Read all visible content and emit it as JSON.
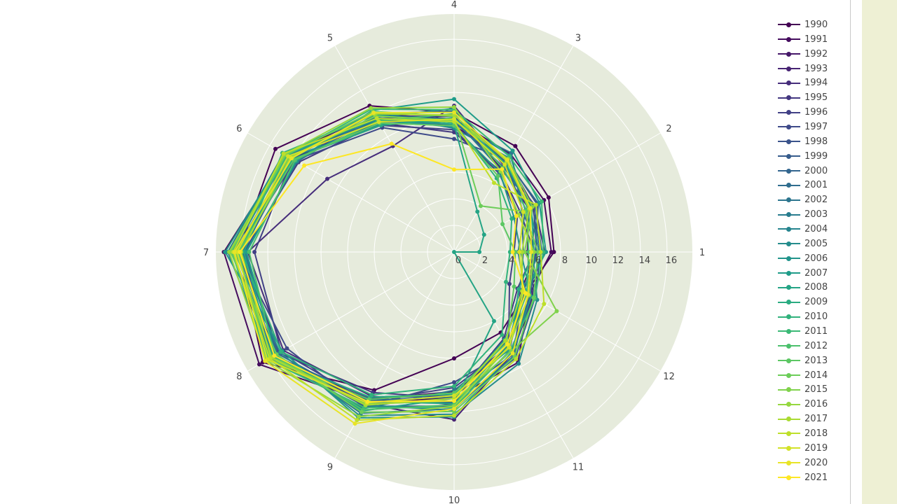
{
  "chart_data": {
    "type": "polar-line",
    "title": "",
    "angular_categories": [
      "1",
      "2",
      "3",
      "4",
      "5",
      "6",
      "7",
      "8",
      "9",
      "10",
      "11",
      "12"
    ],
    "radial_ticks": [
      "0",
      "2",
      "4",
      "6",
      "8",
      "10",
      "12",
      "14",
      "16"
    ],
    "radial_range": [
      0,
      17.9
    ],
    "colorscale": "Viridis",
    "legend_position": "right",
    "grid": true,
    "series": [
      {
        "name": "1990",
        "values": [
          7.5,
          8.2,
          9.2,
          10.5,
          12.7,
          15.5,
          16.2,
          16.6,
          12.0,
          8.0,
          7.0,
          6.2
        ]
      },
      {
        "name": "1991",
        "values": [
          7.3,
          7.8,
          8.5,
          10.0,
          12.0,
          14.6,
          17.3,
          16.9,
          13.0,
          11.0,
          9.6,
          6.5
        ]
      },
      {
        "name": "1992",
        "values": [
          6.2,
          6.9,
          8.0,
          9.5,
          11.5,
          14.0,
          16.0,
          15.8,
          12.8,
          10.5,
          8.4,
          5.8
        ]
      },
      {
        "name": "1993",
        "values": [
          5.5,
          6.5,
          7.2,
          10.2,
          11.8,
          14.2,
          16.2,
          15.5,
          13.2,
          12.6,
          8.8,
          6.8
        ]
      },
      {
        "name": "1994",
        "values": [
          6.8,
          7.0,
          7.5,
          11.0,
          9.2,
          11.0,
          15.5,
          14.8,
          12.5,
          11.5,
          8.0,
          6.3
        ]
      },
      {
        "name": "1995",
        "values": [
          6.0,
          5.8,
          7.0,
          9.0,
          11.2,
          13.5,
          15.8,
          15.2,
          12.2,
          11.0,
          7.5,
          5.5
        ]
      },
      {
        "name": "1996",
        "values": [
          4.5,
          5.5,
          6.8,
          9.2,
          11.0,
          14.0,
          15.0,
          15.0,
          13.0,
          10.2,
          8.2,
          4.8
        ]
      },
      {
        "name": "1997",
        "values": [
          5.8,
          7.2,
          8.0,
          8.5,
          10.8,
          13.8,
          16.3,
          14.5,
          13.5,
          9.8,
          8.5,
          6.9
        ]
      },
      {
        "name": "1998",
        "values": [
          6.3,
          6.0,
          7.8,
          10.3,
          11.6,
          14.3,
          16.0,
          15.6,
          12.7,
          10.8,
          8.9,
          6.0
        ]
      },
      {
        "name": "1999",
        "values": [
          6.5,
          6.8,
          7.4,
          9.8,
          11.3,
          13.9,
          16.4,
          15.7,
          13.4,
          11.6,
          9.2,
          7.0
        ]
      },
      {
        "name": "2000",
        "values": [
          6.1,
          7.3,
          7.9,
          10.6,
          12.0,
          14.1,
          15.9,
          15.3,
          13.1,
          11.3,
          8.6,
          6.6
        ]
      },
      {
        "name": "2001",
        "values": [
          5.2,
          5.9,
          8.6,
          9.6,
          11.4,
          14.5,
          16.6,
          15.9,
          12.9,
          10.9,
          7.8,
          5.7
        ]
      },
      {
        "name": "2002",
        "values": [
          6.6,
          7.0,
          7.1,
          10.0,
          11.9,
          13.6,
          15.7,
          15.4,
          14.0,
          11.8,
          9.0,
          6.4
        ]
      },
      {
        "name": "2003",
        "values": [
          4.8,
          6.2,
          8.2,
          9.3,
          12.1,
          14.8,
          17.0,
          16.0,
          13.6,
          10.4,
          8.3,
          6.2
        ]
      },
      {
        "name": "2004",
        "values": [
          6.4,
          6.6,
          7.6,
          10.8,
          11.7,
          14.4,
          16.1,
          15.8,
          13.3,
          11.9,
          8.1,
          5.9
        ]
      },
      {
        "name": "2005",
        "values": [
          5.9,
          6.4,
          8.4,
          9.9,
          11.1,
          14.2,
          16.5,
          15.1,
          14.2,
          12.2,
          9.7,
          7.2
        ]
      },
      {
        "name": "2006",
        "values": [
          5.0,
          5.2,
          6.9,
          9.4,
          11.5,
          14.7,
          17.2,
          14.9,
          14.4,
          12.4,
          8.7,
          6.7
        ]
      },
      {
        "name": "2007",
        "values": [
          6.9,
          7.4,
          8.8,
          11.5,
          12.3,
          13.7,
          15.6,
          15.5,
          13.8,
          11.0,
          7.6,
          6.1
        ]
      },
      {
        "name": "2008",
        "values": [
          1.9,
          2.6,
          3.5,
          9.6,
          11.6,
          14.6,
          15.8,
          15.7,
          13.0,
          11.4,
          6.0,
          0.0
        ]
      },
      {
        "name": "2009",
        "values": [
          6.0,
          6.7,
          7.7,
          10.1,
          11.0,
          14.0,
          16.3,
          15.9,
          12.6,
          10.7,
          8.4,
          5.6
        ]
      },
      {
        "name": "2010",
        "values": [
          4.2,
          5.0,
          6.4,
          9.7,
          11.9,
          14.9,
          16.0,
          15.0,
          12.4,
          10.1,
          7.2,
          4.5
        ]
      },
      {
        "name": "2011",
        "values": [
          6.7,
          7.6,
          8.3,
          10.7,
          12.4,
          14.5,
          16.7,
          16.2,
          13.5,
          11.7,
          8.5,
          7.0
        ]
      },
      {
        "name": "2012",
        "values": [
          5.6,
          6.3,
          7.3,
          10.4,
          11.4,
          13.8,
          15.4,
          15.6,
          13.7,
          11.5,
          8.0,
          6.3
        ]
      },
      {
        "name": "2013",
        "values": [
          4.6,
          4.2,
          6.6,
          9.5,
          11.2,
          13.9,
          16.2,
          16.1,
          12.8,
          10.6,
          7.9,
          5.2
        ]
      },
      {
        "name": "2014",
        "values": [
          6.3,
          6.1,
          4.0,
          10.2,
          12.2,
          14.6,
          16.8,
          15.4,
          13.9,
          12.0,
          9.1,
          6.9
        ]
      },
      {
        "name": "2015",
        "values": [
          5.3,
          6.8,
          8.1,
          9.9,
          11.8,
          14.3,
          16.4,
          15.8,
          13.2,
          11.2,
          8.6,
          8.9
        ]
      },
      {
        "name": "2016",
        "values": [
          6.0,
          5.6,
          7.0,
          10.9,
          12.5,
          14.7,
          16.9,
          16.3,
          14.3,
          11.6,
          8.2,
          6.5
        ]
      },
      {
        "name": "2017",
        "values": [
          5.1,
          6.5,
          7.9,
          10.3,
          12.0,
          14.2,
          16.0,
          15.9,
          13.3,
          11.0,
          7.7,
          5.9
        ]
      },
      {
        "name": "2018",
        "values": [
          6.5,
          7.1,
          6.0,
          9.8,
          11.6,
          14.8,
          16.6,
          16.0,
          14.6,
          12.3,
          9.3,
          7.8
        ]
      },
      {
        "name": "2019",
        "values": [
          4.9,
          6.0,
          7.6,
          10.0,
          11.3,
          14.4,
          16.3,
          16.2,
          13.1,
          10.8,
          8.3,
          6.0
        ]
      },
      {
        "name": "2020",
        "values": [
          5.8,
          6.6,
          8.0,
          10.5,
          12.1,
          14.1,
          16.5,
          16.4,
          14.9,
          11.8,
          8.8,
          6.4
        ]
      },
      {
        "name": "2021",
        "values": [
          4.4,
          5.4,
          7.2,
          6.2,
          9.4,
          13.0,
          16.1,
          15.6,
          13.0,
          11.2,
          8.0,
          6.2
        ]
      }
    ]
  },
  "colors": {
    "polar_bg": "#e6ebdc",
    "grid": "#ffffff",
    "side_strip": "#eef0d4"
  }
}
